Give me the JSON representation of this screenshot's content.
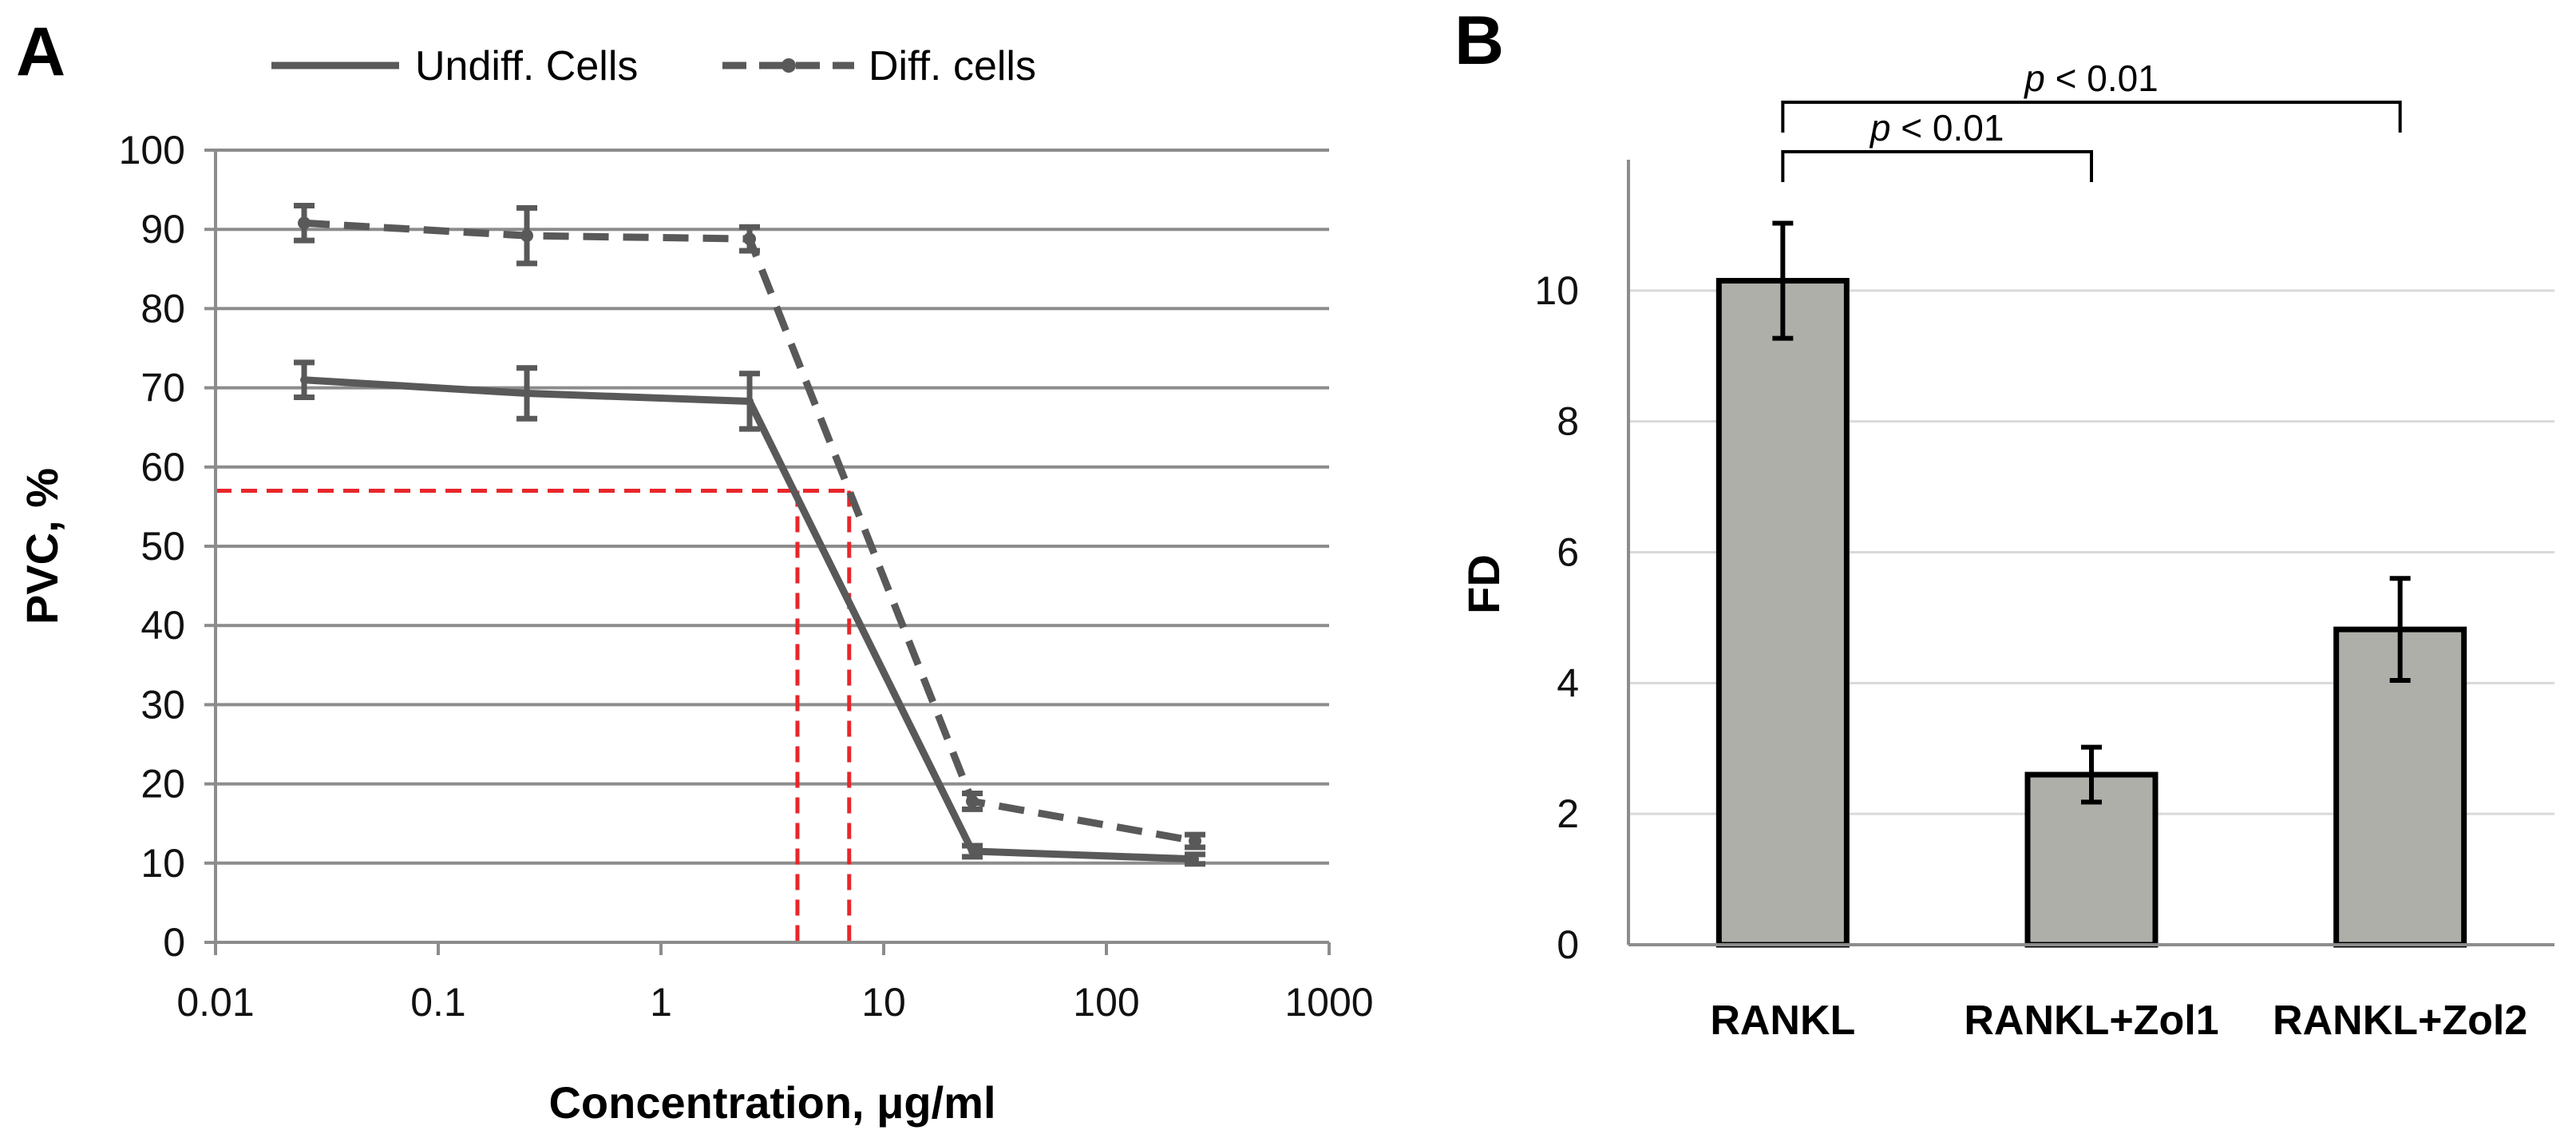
{
  "chart_data": [
    {
      "type": "line",
      "panel": "A",
      "xscale": "log",
      "xlim": [
        0.01,
        1000
      ],
      "ylim": [
        0,
        100
      ],
      "xticks": [
        "0.01",
        "0.1",
        "1",
        "10",
        "100",
        "1000"
      ],
      "yticks": [
        "0",
        "10",
        "20",
        "30",
        "40",
        "50",
        "60",
        "70",
        "80",
        "90",
        "100"
      ],
      "xlabel": "Concentration, μg/ml",
      "ylabel": "PVC, %",
      "grid": "horizontal",
      "legend_position": "top",
      "series": [
        {
          "name": "Undiff. Cells",
          "style": "solid",
          "color": "#595959",
          "x": [
            0.025,
            0.25,
            2.5,
            25,
            250
          ],
          "y": [
            71.0,
            69.3,
            68.3,
            11.5,
            10.5
          ],
          "err": [
            2.2,
            3.2,
            3.5,
            0.7,
            0.6
          ]
        },
        {
          "name": "Diff. cells",
          "style": "dashed",
          "color": "#595959",
          "x": [
            0.025,
            0.25,
            2.5,
            25,
            250
          ],
          "y": [
            90.8,
            89.2,
            88.8,
            17.8,
            12.8
          ],
          "err": [
            2.2,
            3.5,
            1.5,
            1.0,
            0.8
          ]
        }
      ],
      "reference_lines": {
        "color": "#e8262a",
        "y": 57,
        "x": [
          4.1,
          7.0
        ]
      }
    },
    {
      "type": "bar",
      "panel": "B",
      "categories": [
        "RANKL",
        "RANKL+Zol1",
        "RANKL+Zol2"
      ],
      "values": [
        10.15,
        2.6,
        4.82
      ],
      "err": [
        0.88,
        0.42,
        0.78
      ],
      "ylim": [
        0,
        12
      ],
      "yticks": [
        "0",
        "2",
        "4",
        "6",
        "8",
        "10"
      ],
      "ylabel": "FD",
      "grid": "horizontal",
      "bar_color": "#afafaa",
      "significance": [
        {
          "from": 0,
          "to": 1,
          "p_symbol": "p",
          "label": " < 0.01"
        },
        {
          "from": 0,
          "to": 2,
          "p_symbol": "p",
          "label": " < 0.01"
        }
      ]
    }
  ]
}
